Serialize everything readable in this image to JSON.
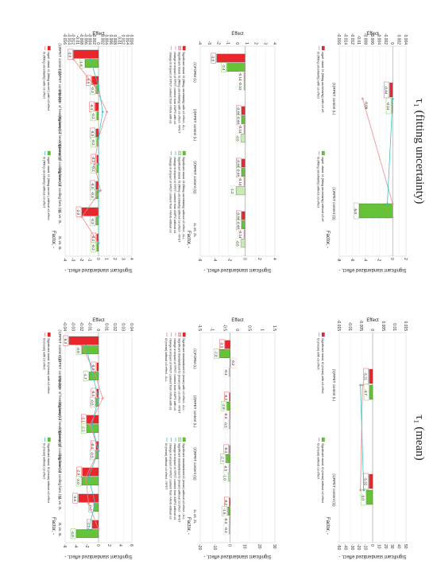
{
  "headings": {
    "left": "τ₁ (fitting uncertainty)",
    "right": "τ₁ (mean)"
  },
  "colors": {
    "red": "#e8262b",
    "green": "#66c236",
    "pink": "#f4b8bd",
    "lightgreen": "#c8eab6",
    "blue": "#1f6fb6",
    "orange": "#f5a623",
    "lightblue": "#a9c9f0",
    "line_pink": "#f08a8f",
    "line_teal": "#3cc3c0"
  },
  "chart_data": [
    {
      "type": "bar",
      "panel": "top-left",
      "ylabel": "Effect",
      "y2label": "Significant standardized effect, -",
      "xlabel": "Factor, -",
      "y_ticks": [
        "0.004",
        "0.002",
        "0",
        "-0.002",
        "-0.004",
        "-0.006",
        "-0.008",
        "-0.01",
        "-0.012",
        "-0.014",
        "-0.016"
      ],
      "y2_ticks": [
        "2",
        "0",
        "-2",
        "-4",
        "-6",
        "-8"
      ],
      "categories": [
        "(1)RPET content (L)",
        "(1)RPET content (Q)"
      ],
      "series": [
        {
          "name": "signif. stand. t3 (fitting uncertainty) with o3 eff.",
          "values": [
            -0.44,
            null
          ],
          "labels": [
            "-0.44",
            ""
          ]
        },
        {
          "name": "signif. stand. t3 (fitting uncertainty) without o3 eff.",
          "values": [
            -0.14,
            -5.0
          ],
          "labels": [
            "-0.14",
            "-5.0"
          ]
        },
        {
          "name": "t3 (fitting uncertainty) with o3 effect",
          "values": [
            -0.009,
            0.0
          ]
        },
        {
          "name": "t3 (fitting uncertainty) without o3 effect",
          "values": [
            0.0,
            -0.0016
          ]
        }
      ],
      "point_labels": [
        "-0.09"
      ],
      "legend": "bottom"
    },
    {
      "type": "bar",
      "panel": "top-right",
      "ylabel": "Effect",
      "y2label": "Significant standardized effect, -",
      "xlabel": "Factor, -",
      "y_ticks": [
        "0.015",
        "0.01",
        "0.005",
        "0",
        "-0.005",
        "-0.01",
        "-0.015"
      ],
      "y2_ticks": [
        "50",
        "40",
        "30",
        "20",
        "10",
        "0",
        "-10",
        "-20",
        "-30",
        "-40",
        "-50"
      ],
      "categories": [
        "(1)RPET content (L)",
        "(1)RPET content (Q)"
      ],
      "series": [
        {
          "name": "Significant stand. t3 (mean) with o3 effect",
          "values": [
            -5.21,
            -5.32
          ],
          "labels": [
            "-5.21",
            "-5.32"
          ]
        },
        {
          "name": "Significant stand. t3 (mean) without o3 effect",
          "values": [
            -4.7,
            -9.0
          ],
          "labels": [
            "-4.7",
            "-9.0"
          ]
        },
        {
          "name": "t3 (mean) with o3 effect",
          "values": [
            -0.0045,
            -0.0055
          ]
        },
        {
          "name": "t3 (mean) without o3 effect",
          "values": [
            -0.0055,
            -0.004
          ]
        }
      ],
      "legend": "bottom"
    },
    {
      "type": "bar",
      "panel": "middle-left",
      "ylabel": "Effect",
      "y2label": "Significant standardized effect, -",
      "xlabel": "Factor, -",
      "y_ticks": [
        "4",
        "3",
        "2",
        "1",
        "0",
        "-1",
        "-2",
        "-3",
        "-4"
      ],
      "y2_ticks": [
        "4",
        "2",
        "0",
        "-2",
        "-4",
        "-6"
      ],
      "categories": [
        "(1)FORM (L)",
        "(2)RPET content (L)",
        "(2)RPET content (Q)",
        "1L vs. 2L"
      ],
      "series": [
        {
          "name": "Significant stand. t3 (fitting uncertainty) with o3 effect - ALL",
          "values": [
            -3.8,
            -0.44,
            -0.44,
            -0.44
          ],
          "labels": [
            "-3.8",
            "-0.44",
            "-0.44",
            "-0.44"
          ]
        },
        {
          "name": "Significant stand. t3 (fitting uncertainty) without o3 effect - ALL",
          "values": [
            -2.4,
            -0.44,
            -0.44,
            -0.44
          ],
          "labels": [
            "-2.4",
            "-0.44",
            "-0.44",
            "-0.44"
          ]
        },
        {
          "name": "Significant stand. t3 (fitting uncertainty) with o3 effect - RPET",
          "values": [
            -0.14,
            -0.14,
            -0.14,
            -0.14
          ],
          "labels": [
            "-0.14",
            "-0.14",
            "-0.14",
            "-0.14"
          ]
        },
        {
          "name": "Significant stand. t3 (fitting uncertainty) without o3 effect - RPET",
          "values": [
            -0.14,
            -0.5,
            -1.2,
            -0.5
          ],
          "labels": [
            "-0.14",
            "-0.5",
            "-1.2",
            "-0.5"
          ]
        }
      ],
      "markers": [
        "change in impact of RPET content from AMPS with o3",
        "change in impact of RPET content from AMPS without o3",
        "change in impact of RPET content from FANS with o3",
        "change in impact of RPET content from FANS without o3"
      ],
      "legend": "bottom"
    },
    {
      "type": "bar",
      "panel": "middle-right",
      "ylabel": "Effect",
      "y2label": "Significant standardized effect, -",
      "xlabel": "Factor, -",
      "y_ticks": [
        "1.5",
        "1",
        "0.5",
        "0",
        "-0.5",
        "-1",
        "-1.5"
      ],
      "y2_ticks": [
        "30",
        "20",
        "10",
        "0",
        "-10",
        "-20"
      ],
      "categories": [
        "(1)FORM (L)",
        "(2)RPET content (L)",
        "(2)RPET content (Q)",
        "1L vs. 2L"
      ],
      "series": [
        {
          "name": "Significant standardized t3 (mean) with o3 effect - ALL",
          "values": [
            -3.3,
            -0.2,
            -0.4,
            -0.2
          ],
          "labels": [
            "-3.3",
            "-0.2",
            "-0.4",
            "-0.2"
          ]
        },
        {
          "name": "Significant standardized t3 (mean) without o3 effect - ALL",
          "values": [
            -7.0,
            -2.0,
            -2.7,
            -1.5
          ],
          "labels": [
            "-7.0",
            "-2.0",
            "-2.7",
            "-1.5"
          ]
        },
        {
          "name": "Significant standardized t3 (mean) with o3 effect - RPET",
          "values": [
            0.2,
            -0.3,
            -0.5,
            -0.3
          ],
          "labels": [
            "0.2",
            "-0.3",
            "-0.5",
            "-0.3"
          ]
        },
        {
          "name": "Significant standardized t3 (mean) without o3 effect - RPET",
          "values": [
            -0.4,
            -0.5,
            -1.0,
            -0.4
          ],
          "labels": [
            "-0.4",
            "-0.5",
            "-1.0",
            "-0.4"
          ]
        }
      ],
      "markers": [
        "change in impact of RPET content from AMPS with o3",
        "change in impact of RPET content from AMPS without o3",
        "change in impact of RPET content from FANS with o3",
        "change in impact of RPET content from FANS without o3",
        "t3 (mean) without o3 effect - ALL",
        "t3 (mean) without o3 effect - RPET"
      ],
      "legend": "bottom"
    },
    {
      "type": "bar",
      "panel": "bottom-left",
      "ylabel": "Effect",
      "y2label": "Significant standardized effect, -",
      "xlabel": "Factor, -",
      "y_ticks": [
        "0.016",
        "0.014",
        "0.012",
        "0.01",
        "0.008",
        "0.006",
        "0.004",
        "0.002",
        "0",
        "-0.002",
        "-0.004",
        "-0.006",
        "-0.008",
        "-0.01",
        "-0.012",
        "-0.014",
        "-0.016"
      ],
      "y2_ticks": [
        "4",
        "3",
        "2",
        "1",
        "0",
        "-1",
        "-2",
        "-3",
        "-4"
      ],
      "categories": [
        "(1)RPET content (L)",
        "(1)RPET content (Q)",
        "(2)power of heating lamp(L)",
        "(3)power of heating lamp(Q)",
        "(3)power of cooling fans (L)",
        "(3)power of cooling fans (Q)",
        "1L vs. 2L",
        "2L vs. 3L"
      ],
      "series": [
        {
          "name": "signif. stand. t3 (fitting uncert.) with o3 effect",
          "values": [
            -3.0,
            -0.8,
            -0.4,
            -0.3,
            -0.2,
            -0.3,
            -2.0,
            -0.2
          ],
          "labels": [
            "-3.0",
            "-0.8",
            "-0.4",
            "-0.3",
            "-0.2",
            "-0.3",
            "-2.0",
            "-0.2"
          ]
        },
        {
          "name": "signif. stand. t3 (fitting uncert.) without o3 effect",
          "values": [
            -1.6,
            -0.3,
            -0.2,
            -0.2,
            -0.2,
            -0.3,
            -0.3,
            -0.2
          ],
          "labels": [
            "-1.6",
            "-0.3",
            "-0.2",
            "-0.2",
            "-0.2",
            "-0.3",
            "-0.3",
            "-0.2"
          ]
        },
        {
          "name": "t3 (fitting uncertainty) with o3 effect",
          "values": [
            -0.012,
            -0.002,
            0.004,
            0.0,
            -0.002,
            0.001,
            -0.008,
            0.0
          ]
        },
        {
          "name": "t3 (fitting uncertainty) without o3 effect",
          "values": [
            -0.004,
            0.0,
            0.002,
            0.0,
            0.0,
            0.0,
            0.0,
            0.0
          ]
        }
      ],
      "legend": "bottom"
    },
    {
      "type": "bar",
      "panel": "bottom-right",
      "ylabel": "Effect",
      "y2label": "Significant standardized effect, -",
      "xlabel": "Factor, -",
      "y_ticks": [
        "0.04",
        "0.03",
        "0.02",
        "0.01",
        "0",
        "-0.01",
        "-0.02",
        "-0.03",
        "-0.04"
      ],
      "y2_ticks": [
        "6",
        "4",
        "2",
        "0",
        "-2",
        "-4",
        "-6"
      ],
      "categories": [
        "(1)RPET content (L)",
        "(1)RPET content (Q)",
        "(2)power of heating lamp(L)",
        "(2)power of heating lamp(Q)",
        "(3)power of cooling fans (L)",
        "(3)power of cooling fans (Q)",
        "1L vs. 2L",
        "2L vs. 3L"
      ],
      "series": [
        {
          "name": "Significant stand. t3 (mean) with o3 effect",
          "values": [
            -5.3,
            -0.3,
            -0.3,
            -2.1,
            -0.4,
            -2.9,
            -3.6,
            -1.1
          ],
          "labels": [
            "-5.3",
            "-0.3",
            "-0.3",
            "-2.1",
            "-0.4",
            "-2.9",
            "-3.6",
            "-1.1"
          ]
        },
        {
          "name": "Significant stand. t3 (mean) without o3 effect",
          "values": [
            -3.0,
            -1.7,
            -0.5,
            -2.1,
            -0.5,
            -3.0,
            -0.8,
            -4.0
          ],
          "labels": [
            "-3.0",
            "-1.7",
            "-0.5",
            "-2.1",
            "-0.5",
            "-3.0",
            "-0.8",
            "-4.0"
          ]
        },
        {
          "name": "t3 (mean) with o3 effect",
          "values": [
            -0.02,
            -0.005,
            0.005,
            -0.01,
            0.0,
            -0.015,
            -0.012,
            0.0
          ]
        },
        {
          "name": "t3 (mean) without o3 effect",
          "values": [
            -0.015,
            -0.008,
            0.0,
            -0.008,
            0.0,
            -0.012,
            -0.004,
            -0.012
          ]
        }
      ],
      "legend": "bottom"
    }
  ]
}
